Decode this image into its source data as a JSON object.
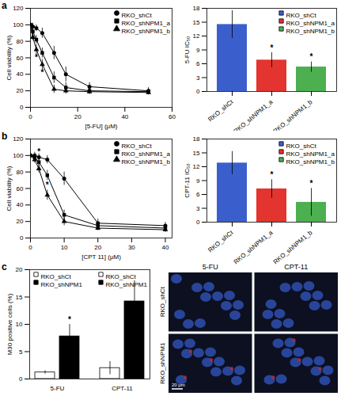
{
  "chart_data": [
    {
      "panel": "a",
      "type": "line",
      "x_label": "[5-FU] (μM)",
      "y_label": "Cell viability (%)",
      "xlim": [
        0,
        60
      ],
      "xticks": [
        0,
        20,
        40,
        60
      ],
      "ylim": [
        0,
        120
      ],
      "yticks": [
        0,
        20,
        40,
        60,
        80,
        100,
        120
      ],
      "legend": "top-right",
      "x": [
        0,
        1,
        2.5,
        5,
        10,
        15,
        25,
        50
      ],
      "series": [
        {
          "name": "RKO_shCt",
          "color": "#000000",
          "marker": "circle",
          "values": [
            100,
            98,
            96,
            90,
            66,
            40,
            25,
            20
          ],
          "errors": [
            3,
            4,
            4,
            6,
            8,
            9,
            5,
            4
          ]
        },
        {
          "name": "RKO_shNPM1_a",
          "color": "#000000",
          "marker": "square",
          "values": [
            100,
            92,
            82,
            66,
            36,
            24,
            20,
            19
          ],
          "errors": [
            2,
            4,
            5,
            6,
            7,
            6,
            4,
            3
          ]
        },
        {
          "name": "RKO_shNPM1_b",
          "color": "#000000",
          "marker": "triangle",
          "values": [
            100,
            85,
            70,
            52,
            22,
            20,
            19,
            18
          ],
          "errors": [
            2,
            4,
            6,
            6,
            5,
            4,
            3,
            3
          ]
        }
      ],
      "annotations": [
        {
          "x": 2.5,
          "y": 60,
          "text": "*"
        },
        {
          "x": 5,
          "y": 42,
          "text": "*"
        }
      ]
    },
    {
      "type": "bar",
      "y_label": "5-FU IC₅₀",
      "ylim": [
        0,
        18
      ],
      "yticks": [
        0,
        3,
        6,
        9,
        12,
        15,
        18
      ],
      "legend": "top-right",
      "categories": [
        "RKO_shCt",
        "RKO_shNPM1_a",
        "RKO_shNPM1_b"
      ],
      "values": [
        14.5,
        6.8,
        5.3
      ],
      "errors": [
        3.0,
        1.6,
        1.1
      ],
      "colors": [
        "#3a5fcd",
        "#e3342f",
        "#4caf50"
      ],
      "annotations": [
        {
          "category": "RKO_shNPM1_a",
          "text": "*"
        },
        {
          "category": "RKO_shNPM1_b",
          "text": "*"
        }
      ]
    },
    {
      "panel": "b",
      "type": "line",
      "x_label": "[CPT 11] (μM)",
      "y_label": "Cell viability (%)",
      "xlim": [
        0,
        42
      ],
      "xticks": [
        0,
        10,
        20,
        30,
        40
      ],
      "ylim": [
        0,
        120
      ],
      "yticks": [
        0,
        20,
        40,
        60,
        80,
        100,
        120
      ],
      "legend": "top-right",
      "x": [
        0,
        1.25,
        2.5,
        5,
        10,
        20,
        40
      ],
      "series": [
        {
          "name": "RKO_shCt",
          "color": "#000000",
          "marker": "circle",
          "values": [
            100,
            100,
            98,
            95,
            72,
            18,
            15
          ],
          "errors": [
            3,
            4,
            4,
            5,
            8,
            5,
            4
          ]
        },
        {
          "name": "RKO_shNPM1_a",
          "color": "#000000",
          "marker": "square",
          "values": [
            100,
            98,
            92,
            76,
            28,
            15,
            12
          ],
          "errors": [
            2,
            3,
            5,
            6,
            6,
            4,
            3
          ]
        },
        {
          "name": "RKO_shNPM1_b",
          "color": "#000000",
          "marker": "triangle",
          "values": [
            100,
            95,
            84,
            52,
            20,
            12,
            10
          ],
          "errors": [
            2,
            4,
            5,
            6,
            5,
            3,
            3
          ]
        }
      ],
      "annotations": [
        {
          "x": 2.5,
          "y": 104,
          "text": "*"
        },
        {
          "x": 5,
          "y": 64,
          "text": "*"
        }
      ]
    },
    {
      "type": "bar",
      "y_label": "CPT-11 IC₅₀",
      "ylim": [
        0,
        18
      ],
      "yticks": [
        0,
        3,
        6,
        9,
        12,
        15,
        18
      ],
      "legend": "top-right",
      "categories": [
        "RKO_shCt",
        "RKO_shNPM1_a",
        "RKO_shNPM1_b"
      ],
      "values": [
        12.8,
        7.2,
        4.3
      ],
      "errors": [
        2.5,
        2.0,
        3.0
      ],
      "colors": [
        "#3a5fcd",
        "#e3342f",
        "#4caf50"
      ],
      "annotations": [
        {
          "category": "RKO_shNPM1_a",
          "text": "*"
        },
        {
          "category": "RKO_shNPM1_b",
          "text": "*"
        }
      ]
    },
    {
      "panel": "c",
      "type": "bar",
      "y_label": "M30 positive cells (%)",
      "ylim": [
        0,
        20
      ],
      "yticks": [
        0,
        5,
        10,
        15,
        20
      ],
      "legend": "top-left",
      "categories": [
        "5-FU",
        "CPT-11"
      ],
      "series": [
        {
          "name": "RKO_shCt",
          "color": "#ffffff",
          "values": [
            1.2,
            2.0
          ],
          "errors": [
            0.3,
            1.2
          ]
        },
        {
          "name": "RKO_shNPM1",
          "color": "#000000",
          "values": [
            7.8,
            14.2
          ],
          "errors": [
            2.2,
            3.8
          ]
        }
      ],
      "annotations": [
        {
          "category": "5-FU",
          "series": "RKO_shNPM1",
          "text": "*"
        }
      ]
    },
    {
      "type": "image_grid",
      "columns": [
        "5-FU",
        "CPT-11"
      ],
      "rows": [
        "RKO_shCt",
        "RKO_shNPM1"
      ],
      "scale_bar": "20 μm"
    }
  ]
}
